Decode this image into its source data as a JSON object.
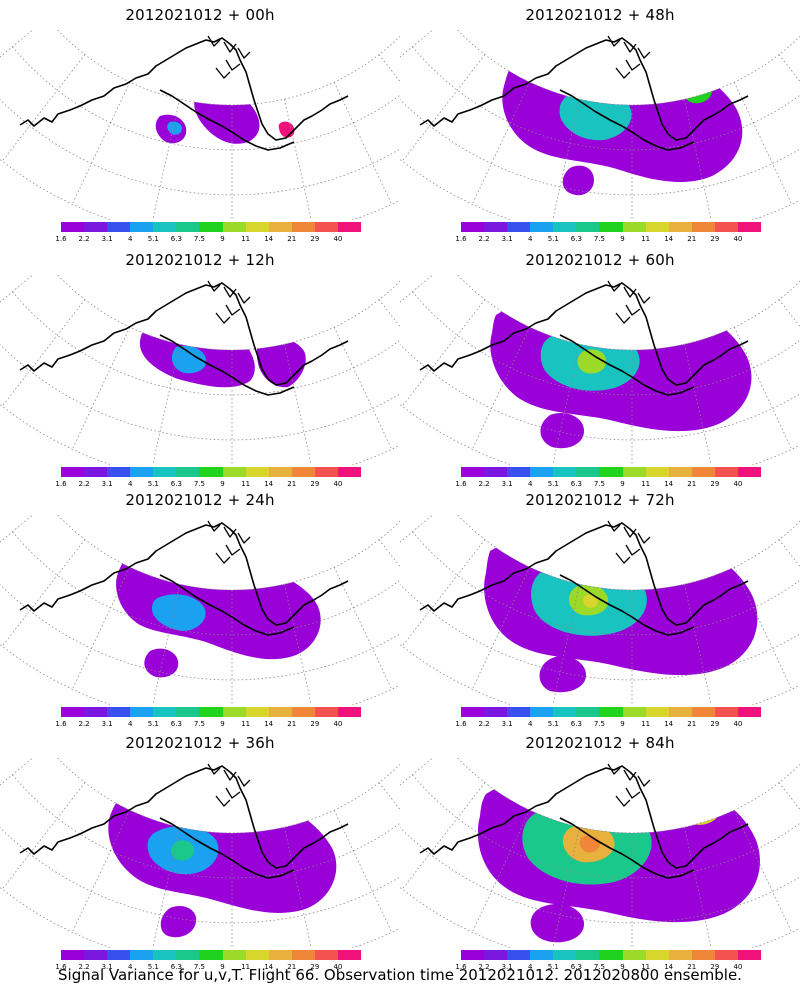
{
  "panels": [
    {
      "title": "2012021012 + 00h"
    },
    {
      "title": "2012021012 + 48h"
    },
    {
      "title": "2012021012 + 12h"
    },
    {
      "title": "2012021012 + 60h"
    },
    {
      "title": "2012021012 + 24h"
    },
    {
      "title": "2012021012 + 72h"
    },
    {
      "title": "2012021012 + 36h"
    },
    {
      "title": "2012021012 + 84h"
    }
  ],
  "colorbar": {
    "labels": [
      "1.6",
      "2.2",
      "3.1",
      "4",
      "5.1",
      "6.3",
      "7.5",
      "9",
      "11",
      "14",
      "21",
      "29",
      "40"
    ],
    "colors": [
      "#9a00d8",
      "#7a18e0",
      "#3850ee",
      "#1aa2f0",
      "#19c4c0",
      "#19c88a",
      "#1ed21e",
      "#9cda2a",
      "#d8d62c",
      "#e8b03c",
      "#f08638",
      "#f35250",
      "#f0127c"
    ]
  },
  "caption": "Signal Variance for u,v,T. Flight 66. Observation time 2012021012. 2012020800 ensemble."
}
